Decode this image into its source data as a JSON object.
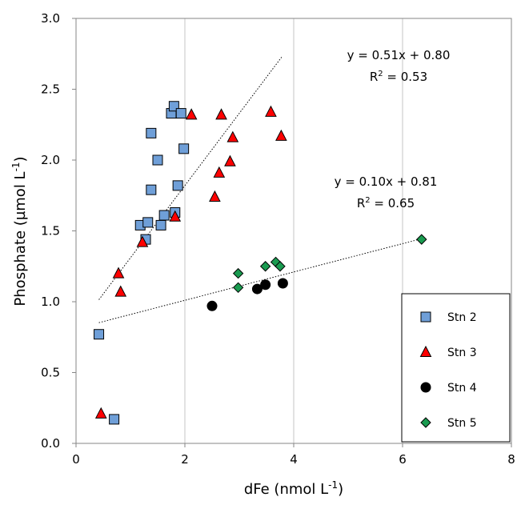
{
  "chart_data": {
    "type": "scatter",
    "xlabel": "dFe (nmol L",
    "xlabel_sup": "-1",
    "xlabel_end": ")",
    "ylabel": "Phosphate (µmol L",
    "ylabel_sup": "-1",
    "ylabel_end": ")",
    "xlim": [
      0,
      8
    ],
    "ylim": [
      0,
      3.0
    ],
    "x_ticks": [
      "0",
      "2",
      "4",
      "6",
      "8"
    ],
    "y_ticks": [
      "0.0",
      "0.5",
      "1.0",
      "1.5",
      "2.0",
      "2.5",
      "3.0"
    ],
    "grid": "vertical",
    "legend_position": "bottom-right",
    "series": [
      {
        "name": "Stn 2",
        "marker": "square",
        "color": "#6f9fd8",
        "points": [
          [
            0.42,
            0.77
          ],
          [
            0.7,
            0.17
          ],
          [
            1.18,
            1.54
          ],
          [
            1.28,
            1.44
          ],
          [
            1.32,
            1.56
          ],
          [
            1.38,
            2.19
          ],
          [
            1.38,
            1.79
          ],
          [
            1.5,
            2.0
          ],
          [
            1.56,
            1.54
          ],
          [
            1.62,
            1.61
          ],
          [
            1.75,
            2.33
          ],
          [
            1.8,
            2.38
          ],
          [
            1.82,
            1.63
          ],
          [
            1.87,
            1.82
          ],
          [
            1.93,
            2.33
          ],
          [
            1.98,
            2.08
          ]
        ]
      },
      {
        "name": "Stn 3",
        "marker": "triangle",
        "color": "#ff0000",
        "points": [
          [
            0.46,
            0.21
          ],
          [
            0.78,
            1.2
          ],
          [
            0.82,
            1.07
          ],
          [
            1.22,
            1.42
          ],
          [
            1.82,
            1.6
          ],
          [
            2.12,
            2.32
          ],
          [
            2.55,
            1.74
          ],
          [
            2.63,
            1.91
          ],
          [
            2.67,
            2.32
          ],
          [
            2.83,
            1.99
          ],
          [
            2.88,
            2.16
          ],
          [
            3.58,
            2.34
          ],
          [
            3.77,
            2.17
          ]
        ]
      },
      {
        "name": "Stn 4",
        "marker": "circle",
        "color": "#000000",
        "points": [
          [
            2.5,
            0.97
          ],
          [
            3.33,
            1.09
          ],
          [
            3.48,
            1.12
          ],
          [
            3.8,
            1.13
          ]
        ]
      },
      {
        "name": "Stn 5",
        "marker": "diamond",
        "color": "#1a9b50",
        "points": [
          [
            2.98,
            1.2
          ],
          [
            2.98,
            1.1
          ],
          [
            3.48,
            1.25
          ],
          [
            3.67,
            1.28
          ],
          [
            3.75,
            1.25
          ],
          [
            6.35,
            1.44
          ]
        ]
      }
    ],
    "trendlines": [
      {
        "x_range": [
          0.42,
          3.78
        ],
        "slope": 0.51,
        "intercept": 0.8
      },
      {
        "x_range": [
          0.42,
          6.35
        ],
        "slope": 0.1,
        "intercept": 0.81
      }
    ],
    "annotations": [
      {
        "line1": "y = 0.51x + 0.80",
        "line2_prefix": "R",
        "line2_sup": "2",
        "line2_suffix": " = 0.53"
      },
      {
        "line1": "y = 0.10x + 0.81",
        "line2_prefix": "R",
        "line2_sup": "2",
        "line2_suffix": " = 0.65"
      }
    ]
  }
}
